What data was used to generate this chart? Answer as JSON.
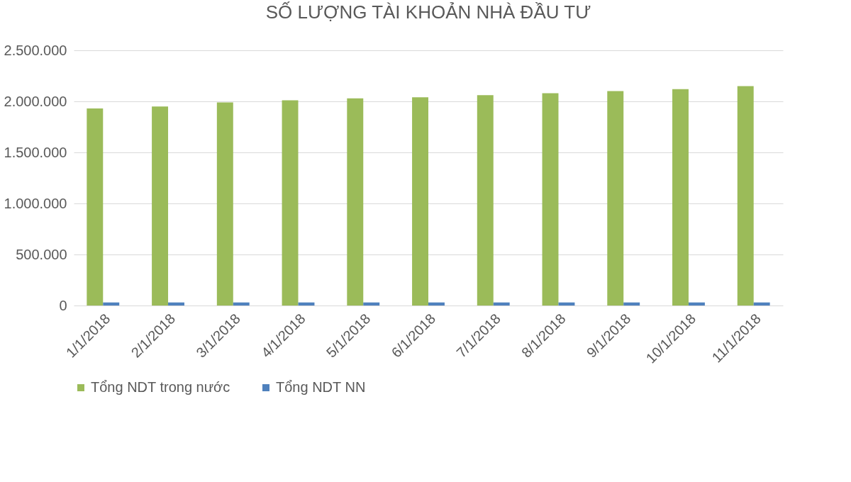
{
  "chart_data": {
    "type": "bar",
    "title": "SỐ LƯỢNG TÀI KHOẢN NHÀ ĐẦU TƯ",
    "categories": [
      "1/1/2018",
      "2/1/2018",
      "3/1/2018",
      "4/1/2018",
      "5/1/2018",
      "6/1/2018",
      "7/1/2018",
      "8/1/2018",
      "9/1/2018",
      "10/1/2018",
      "11/1/2018"
    ],
    "series": [
      {
        "name": "Tổng NDT trong nước",
        "color": "#9bbb59",
        "values": [
          1930000,
          1950000,
          1990000,
          2010000,
          2030000,
          2040000,
          2060000,
          2080000,
          2100000,
          2120000,
          2150000
        ]
      },
      {
        "name": "Tổng NDT NN",
        "color": "#4f81bd",
        "values": [
          30000,
          30000,
          30000,
          30000,
          30000,
          30000,
          30000,
          30000,
          30000,
          30000,
          30000
        ]
      }
    ],
    "ylim": [
      0,
      2500000
    ],
    "yticks": [
      {
        "value": 0,
        "label": "0"
      },
      {
        "value": 500000,
        "label": "500.000"
      },
      {
        "value": 1000000,
        "label": "1.000.000"
      },
      {
        "value": 1500000,
        "label": "1.500.000"
      },
      {
        "value": 2000000,
        "label": "2.000.000"
      },
      {
        "value": 2500000,
        "label": "2.500.000"
      }
    ],
    "grid": "y",
    "legend": "bottom"
  }
}
